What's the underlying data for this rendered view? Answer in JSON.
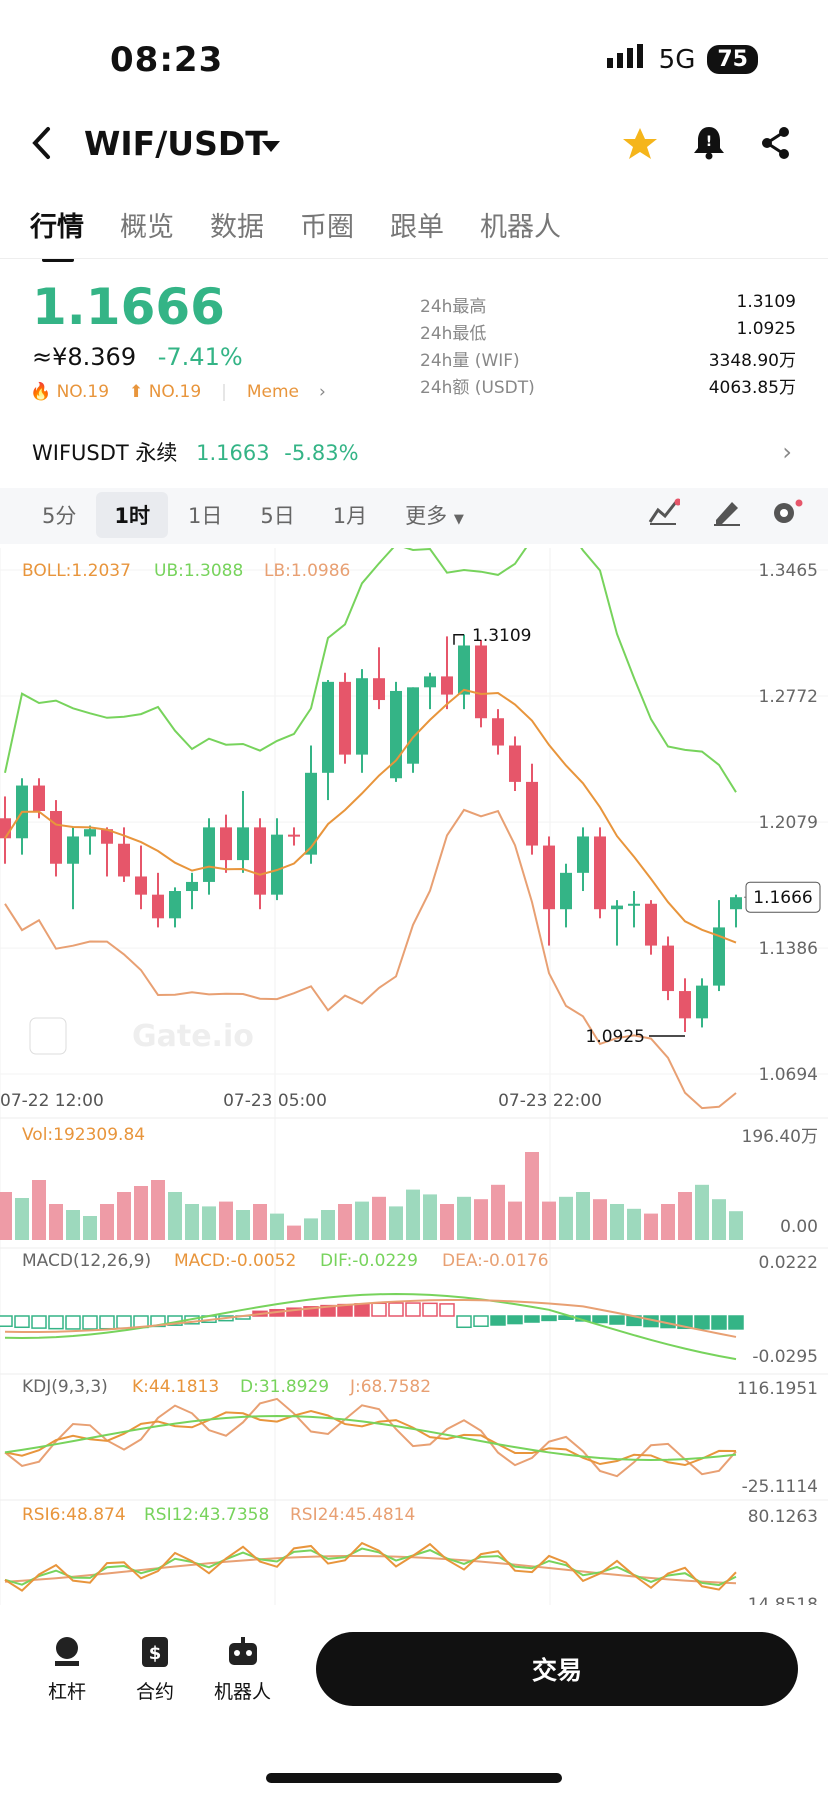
{
  "status": {
    "time": "08:23",
    "network": "5G",
    "battery": "75"
  },
  "header": {
    "pair": "WIF/USDT"
  },
  "tabs": [
    "行情",
    "概览",
    "数据",
    "币圈",
    "跟单",
    "机器人"
  ],
  "price": {
    "last": "1.1666",
    "cny": "≈¥8.369",
    "change": "-7.41%",
    "rank1": "NO.19",
    "rank2": "NO.19",
    "tag": "Meme"
  },
  "stats": [
    {
      "k": "24h最高",
      "v": "1.3109"
    },
    {
      "k": "24h最低",
      "v": "1.0925"
    },
    {
      "k": "24h量 (WIF)",
      "v": "3348.90万"
    },
    {
      "k": "24h额 (USDT)",
      "v": "4063.85万"
    }
  ],
  "perp": {
    "label": "WIFUSDT 永续",
    "price": "1.1663",
    "change": "-5.83%"
  },
  "periods": [
    "5分",
    "1时",
    "1日",
    "5日",
    "1月",
    "更多"
  ],
  "main_chart": {
    "legend": {
      "boll": "BOLL:1.2037",
      "ub": "UB:1.3088",
      "lb": "LB:1.0986"
    },
    "y_ticks": [
      "1.3465",
      "1.2772",
      "1.2079",
      "1.1386",
      "1.0694"
    ],
    "x_ticks": [
      "07-22 12:00",
      "07-23 05:00",
      "07-23 22:00"
    ],
    "high_label": "1.3109",
    "low_label": "1.0925",
    "last_label": "1.1666",
    "watermark": "Gate.io"
  },
  "vol": {
    "legend": "Vol:192309.84",
    "max": "196.40万",
    "min": "0.00"
  },
  "macd": {
    "legend": "MACD(12,26,9)",
    "macd": "MACD:-0.0052",
    "dif": "DIF:-0.0229",
    "dea": "DEA:-0.0176",
    "max": "0.0222",
    "min": "-0.0295"
  },
  "kdj": {
    "legend": "KDJ(9,3,3)",
    "k": "K:44.1813",
    "d": "D:31.8929",
    "j": "J:68.7582",
    "max": "116.1951",
    "min": "-25.1114"
  },
  "rsi": {
    "r6": "RSI6:48.874",
    "r12": "RSI12:43.7358",
    "r24": "RSI24:45.4814",
    "max": "80.1263",
    "min": "14.8518"
  },
  "colors": {
    "up": "#34b486",
    "down": "#e6566a",
    "orange": "#e8953c",
    "green_line": "#77d35c"
  },
  "chart_data": {
    "type": "candlestick",
    "ohlc": [
      [
        1.21,
        1.222,
        1.185,
        1.199
      ],
      [
        1.199,
        1.232,
        1.19,
        1.228
      ],
      [
        1.228,
        1.232,
        1.21,
        1.214
      ],
      [
        1.214,
        1.22,
        1.178,
        1.185
      ],
      [
        1.185,
        1.205,
        1.16,
        1.2
      ],
      [
        1.2,
        1.206,
        1.19,
        1.204
      ],
      [
        1.204,
        1.205,
        1.178,
        1.196
      ],
      [
        1.196,
        1.205,
        1.175,
        1.178
      ],
      [
        1.178,
        1.195,
        1.16,
        1.168
      ],
      [
        1.168,
        1.18,
        1.15,
        1.155
      ],
      [
        1.155,
        1.172,
        1.15,
        1.17
      ],
      [
        1.17,
        1.18,
        1.16,
        1.175
      ],
      [
        1.175,
        1.21,
        1.168,
        1.205
      ],
      [
        1.205,
        1.212,
        1.18,
        1.187
      ],
      [
        1.187,
        1.225,
        1.18,
        1.205
      ],
      [
        1.205,
        1.21,
        1.16,
        1.168
      ],
      [
        1.168,
        1.21,
        1.165,
        1.201
      ],
      [
        1.201,
        1.205,
        1.195,
        1.2
      ],
      [
        1.19,
        1.25,
        1.185,
        1.235
      ],
      [
        1.235,
        1.286,
        1.22,
        1.285
      ],
      [
        1.285,
        1.29,
        1.24,
        1.245
      ],
      [
        1.245,
        1.292,
        1.235,
        1.287
      ],
      [
        1.287,
        1.304,
        1.27,
        1.275
      ],
      [
        1.232,
        1.285,
        1.23,
        1.28
      ],
      [
        1.24,
        1.282,
        1.235,
        1.282
      ],
      [
        1.282,
        1.29,
        1.27,
        1.288
      ],
      [
        1.288,
        1.31,
        1.27,
        1.278
      ],
      [
        1.278,
        1.311,
        1.27,
        1.305
      ],
      [
        1.305,
        1.308,
        1.26,
        1.265
      ],
      [
        1.265,
        1.27,
        1.245,
        1.25
      ],
      [
        1.25,
        1.255,
        1.225,
        1.23
      ],
      [
        1.23,
        1.24,
        1.19,
        1.195
      ],
      [
        1.195,
        1.2,
        1.14,
        1.16
      ],
      [
        1.16,
        1.185,
        1.15,
        1.18
      ],
      [
        1.18,
        1.205,
        1.17,
        1.2
      ],
      [
        1.2,
        1.205,
        1.155,
        1.16
      ],
      [
        1.16,
        1.165,
        1.14,
        1.162
      ],
      [
        1.162,
        1.17,
        1.15,
        1.163
      ],
      [
        1.163,
        1.165,
        1.135,
        1.14
      ],
      [
        1.14,
        1.145,
        1.11,
        1.115
      ],
      [
        1.115,
        1.122,
        1.0925,
        1.1
      ],
      [
        1.1,
        1.122,
        1.095,
        1.118
      ],
      [
        1.118,
        1.165,
        1.115,
        1.15
      ],
      [
        1.16,
        1.168,
        1.15,
        1.1666
      ]
    ]
  }
}
